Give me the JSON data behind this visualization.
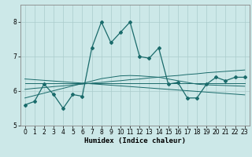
{
  "title": "",
  "xlabel": "Humidex (Indice chaleur)",
  "ylabel": "",
  "background_color": "#cce8e8",
  "grid_color": "#aacccc",
  "line_color": "#1a6b6b",
  "x_values": [
    0,
    1,
    2,
    3,
    4,
    5,
    6,
    7,
    8,
    9,
    10,
    11,
    12,
    13,
    14,
    15,
    16,
    17,
    18,
    19,
    20,
    21,
    22,
    23
  ],
  "main_line": [
    5.6,
    5.7,
    6.2,
    5.9,
    5.5,
    5.9,
    5.85,
    7.25,
    8.0,
    7.4,
    7.7,
    8.0,
    7.0,
    6.95,
    7.25,
    6.2,
    6.25,
    5.8,
    5.8,
    6.2,
    6.4,
    6.3,
    6.4,
    6.4
  ],
  "regression_lines": [
    [
      6.22,
      6.22,
      6.22,
      6.22,
      6.22,
      6.22,
      6.22,
      6.22,
      6.22,
      6.22,
      6.22,
      6.22,
      6.22,
      6.22,
      6.22,
      6.22,
      6.22,
      6.22,
      6.22,
      6.22,
      6.22,
      6.22,
      6.22,
      6.22
    ],
    [
      6.05,
      6.08,
      6.1,
      6.13,
      6.15,
      6.18,
      6.2,
      6.23,
      6.25,
      6.28,
      6.3,
      6.33,
      6.35,
      6.38,
      6.4,
      6.43,
      6.45,
      6.48,
      6.5,
      6.53,
      6.55,
      6.57,
      6.59,
      6.61
    ],
    [
      6.35,
      6.33,
      6.31,
      6.29,
      6.27,
      6.25,
      6.23,
      6.21,
      6.19,
      6.17,
      6.15,
      6.13,
      6.11,
      6.09,
      6.07,
      6.05,
      6.03,
      6.01,
      5.99,
      5.97,
      5.95,
      5.93,
      5.91,
      5.89
    ],
    [
      5.8,
      5.87,
      5.94,
      6.01,
      6.08,
      6.15,
      6.22,
      6.29,
      6.36,
      6.4,
      6.44,
      6.45,
      6.44,
      6.42,
      6.4,
      6.35,
      6.3,
      6.25,
      6.2,
      6.18,
      6.17,
      6.16,
      6.15,
      6.14
    ]
  ],
  "ylim": [
    5.0,
    8.5
  ],
  "xlim": [
    -0.5,
    23.5
  ],
  "yticks": [
    5,
    6,
    7,
    8
  ],
  "xticks": [
    0,
    1,
    2,
    3,
    4,
    5,
    6,
    7,
    8,
    9,
    10,
    11,
    12,
    13,
    14,
    15,
    16,
    17,
    18,
    19,
    20,
    21,
    22,
    23
  ],
  "tick_fontsize": 5.5,
  "xlabel_fontsize": 6.5
}
